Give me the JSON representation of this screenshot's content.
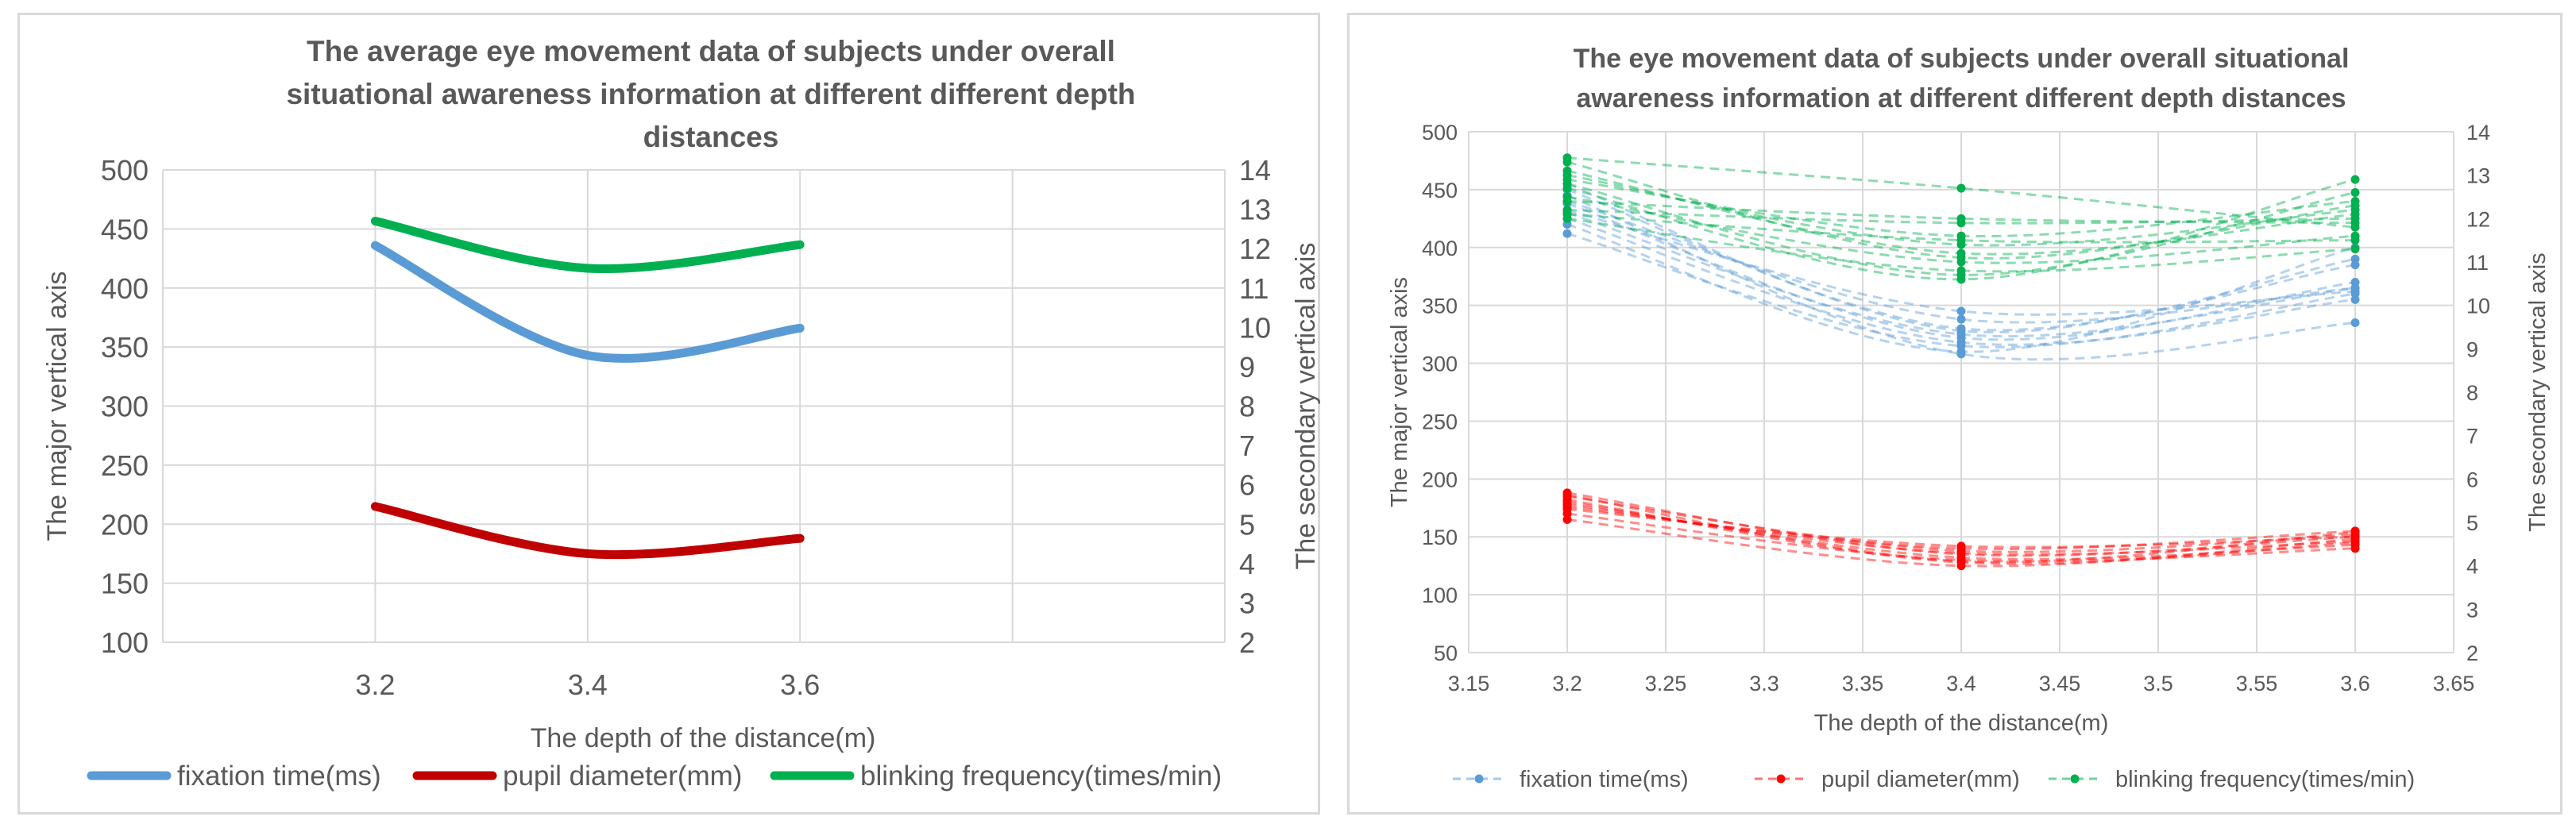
{
  "chart_data": [
    {
      "type": "line",
      "title_lines": [
        "The average eye movement data of subjects under overall",
        "situational awareness information at different different depth",
        "distances"
      ],
      "xlabel": "The depth of the distance(m)",
      "ylabel": "The major vertical axis",
      "y2label": "The secondary vertical axis",
      "categories": [
        "3.2",
        "3.4",
        "3.6"
      ],
      "ylim": [
        100,
        500
      ],
      "yticks": [
        "100",
        "150",
        "200",
        "250",
        "300",
        "350",
        "400",
        "450",
        "500"
      ],
      "y2lim": [
        2,
        14
      ],
      "y2ticks": [
        "2",
        "3",
        "4",
        "5",
        "6",
        "7",
        "8",
        "9",
        "10",
        "11",
        "12",
        "13",
        "14"
      ],
      "series": [
        {
          "name": "fixation time(ms)",
          "axis": "primary",
          "color": "#5b9bd5",
          "values": [
            436,
            343,
            366
          ]
        },
        {
          "name": "pupil diameter(mm)",
          "axis": "primary",
          "color": "#c00000",
          "values": [
            215,
            175,
            188
          ]
        },
        {
          "name": "blinking frequency(times/min)",
          "axis": "secondary",
          "color": "#00b050",
          "values": [
            12.7,
            11.5,
            12.1
          ]
        }
      ]
    },
    {
      "type": "scatter",
      "title_lines": [
        "The eye movement data of subjects under overall situational",
        "awareness information at different different depth distances"
      ],
      "xlabel": "The depth of the distance(m)",
      "ylabel": "The major vertical axis",
      "y2label": "The secondary vertical axis",
      "xlim": [
        3.15,
        3.65
      ],
      "xticks": [
        "3.15",
        "3.2",
        "3.25",
        "3.3",
        "3.35",
        "3.4",
        "3.45",
        "3.5",
        "3.55",
        "3.6",
        "3.65"
      ],
      "x": [
        3.2,
        3.4,
        3.6
      ],
      "ylim": [
        50,
        500
      ],
      "yticks": [
        "50",
        "100",
        "150",
        "200",
        "250",
        "300",
        "350",
        "400",
        "450",
        "500"
      ],
      "y2lim": [
        2,
        14
      ],
      "y2ticks": [
        "2",
        "3",
        "4",
        "5",
        "6",
        "7",
        "8",
        "9",
        "10",
        "11",
        "12",
        "13",
        "14"
      ],
      "series": [
        {
          "name": "fixation time(ms)",
          "axis": "primary",
          "color": "#5b9bd5",
          "lines": [
            [
              445,
              308,
              335
            ],
            [
              412,
              315,
              360
            ],
            [
              430,
              325,
              365
            ],
            [
              438,
              322,
              370
            ],
            [
              450,
              330,
              385
            ],
            [
              425,
              318,
              355
            ],
            [
              440,
              338,
              365
            ],
            [
              420,
              310,
              400
            ],
            [
              455,
              328,
              390
            ],
            [
              432,
              345,
              362
            ]
          ]
        },
        {
          "name": "pupil diameter(mm)",
          "axis": "primary",
          "color": "#ff0000",
          "lines": [
            [
              188,
              135,
              150
            ],
            [
              182,
              128,
              145
            ],
            [
              176,
              140,
              155
            ],
            [
              170,
              130,
              140
            ],
            [
              185,
              138,
              152
            ],
            [
              165,
              125,
              148
            ],
            [
              180,
              132,
              143
            ],
            [
              174,
              142,
              150
            ],
            [
              186,
              129,
              154
            ],
            [
              178,
              136,
              146
            ]
          ]
        },
        {
          "name": "blinking frequency(times/min)",
          "axis": "secondary",
          "color": "#00b050",
          "lines": [
            [
              13.4,
              12.7,
              11.8
            ],
            [
              13.1,
              11.2,
              12.1
            ],
            [
              12.9,
              11.6,
              12.4
            ],
            [
              12.7,
              10.6,
              12.9
            ],
            [
              12.5,
              11.0,
              11.6
            ],
            [
              12.2,
              11.9,
              12.0
            ],
            [
              12.0,
              10.8,
              11.3
            ],
            [
              13.0,
              11.4,
              12.2
            ],
            [
              12.4,
              12.0,
              11.9
            ],
            [
              12.8,
              10.7,
              12.6
            ],
            [
              12.1,
              11.5,
              11.5
            ],
            [
              13.3,
              11.1,
              12.3
            ]
          ]
        }
      ]
    }
  ]
}
